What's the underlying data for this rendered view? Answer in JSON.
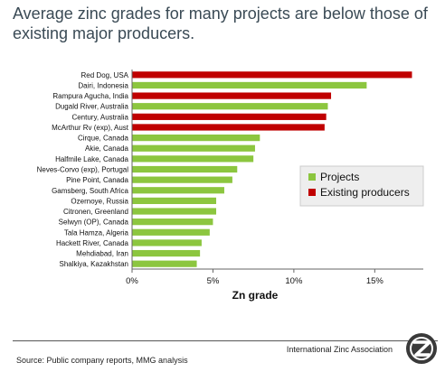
{
  "title": "Average zinc grades for many projects are below those of existing major producers.",
  "footer": {
    "organization": "International Zinc Association",
    "source": "Source: Public company reports, MMG analysis"
  },
  "chart_data": {
    "type": "bar",
    "orientation": "horizontal",
    "xlabel": "Zn grade",
    "xlim": [
      0,
      18
    ],
    "x_ticks": [
      0,
      5,
      10,
      15
    ],
    "x_tick_labels": [
      "0%",
      "5%",
      "10%",
      "15%"
    ],
    "grid": false,
    "legend_placement": "right",
    "series": [
      {
        "name": "Projects",
        "color": "#8cc63f"
      },
      {
        "name": "Existing producers",
        "color": "#c00000"
      }
    ],
    "categories": [
      "Red Dog, USA",
      "Dairi, Indonesia",
      "Rampura Agucha, India",
      "Dugald River, Australia",
      "Century, Australia",
      "McArthur Rv (exp), Aust",
      "Cirque, Canada",
      "Akie, Canada",
      "Halfmile Lake, Canada",
      "Neves-Corvo (exp), Portugal",
      "Pine Point, Canada",
      "Gamsberg, South Africa",
      "Ozernoye, Russia",
      "Citronen, Greenland",
      "Selwyn (OP), Canada",
      "Tala Hamza, Algeria",
      "Hackett River, Canada",
      "Mehdiabad, Iran",
      "Shalkiya, Kazakhstan"
    ],
    "values": [
      17.3,
      14.5,
      12.3,
      12.1,
      12.0,
      11.9,
      7.9,
      7.6,
      7.5,
      6.5,
      6.2,
      5.7,
      5.2,
      5.2,
      5.0,
      4.8,
      4.3,
      4.2,
      4.0
    ],
    "series_of_bar": [
      "Existing producers",
      "Projects",
      "Existing producers",
      "Projects",
      "Existing producers",
      "Existing producers",
      "Projects",
      "Projects",
      "Projects",
      "Projects",
      "Projects",
      "Projects",
      "Projects",
      "Projects",
      "Projects",
      "Projects",
      "Projects",
      "Projects",
      "Projects"
    ]
  }
}
